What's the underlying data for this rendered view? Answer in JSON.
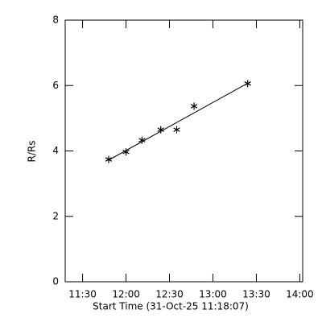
{
  "chart_data": {
    "type": "scatter",
    "xlabel": "Start Time (31-Oct-25 11:18:07)",
    "ylabel": "R/Rs",
    "points": {
      "x": [
        "11:48",
        "12:00",
        "12:11",
        "12:24",
        "12:35",
        "12:47",
        "13:24"
      ],
      "values": [
        3.74,
        3.97,
        4.33,
        4.65,
        4.65,
        5.37,
        6.06
      ]
    },
    "fit": {
      "x": [
        "11:48",
        "13:24"
      ],
      "values": [
        3.72,
        6.07
      ]
    },
    "color": "#000000",
    "xlim": [
      "11:18",
      "14:02"
    ],
    "xticks": [
      "11:30",
      "12:00",
      "12:30",
      "13:00",
      "13:30",
      "14:00"
    ],
    "ylim": [
      0,
      8
    ],
    "yticks": [
      0,
      2,
      4,
      6,
      8
    ]
  }
}
